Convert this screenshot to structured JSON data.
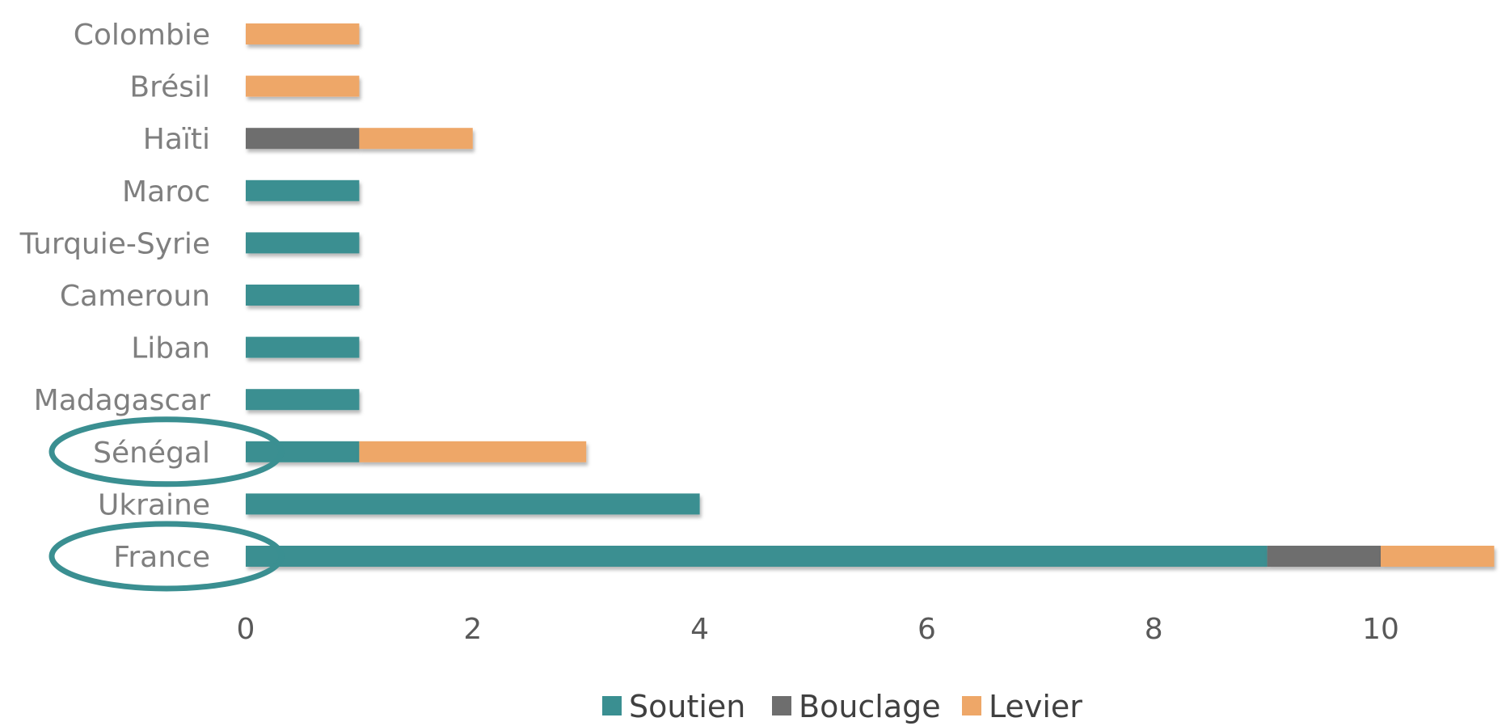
{
  "chart_data": {
    "type": "bar",
    "orientation": "horizontal",
    "stacked": true,
    "categories": [
      "Colombie",
      "Brésil",
      "Haïti",
      "Maroc",
      "Turquie-Syrie",
      "Cameroun",
      "Liban",
      "Madagascar",
      "Sénégal",
      "Ukraine",
      "France"
    ],
    "series": [
      {
        "name": "Soutien",
        "color": "#3a8f91",
        "values": [
          0,
          0,
          0,
          1,
          1,
          1,
          1,
          1,
          1,
          4,
          9
        ]
      },
      {
        "name": "Bouclage",
        "color": "#6e6e6e",
        "values": [
          0,
          0,
          1,
          0,
          0,
          0,
          0,
          0,
          0,
          0,
          1
        ]
      },
      {
        "name": "Levier",
        "color": "#eea768",
        "values": [
          1,
          1,
          1,
          0,
          0,
          0,
          0,
          0,
          2,
          0,
          1
        ]
      }
    ],
    "xticks": [
      "0",
      "2",
      "4",
      "6",
      "8",
      "10"
    ],
    "xlim": [
      0,
      11
    ],
    "legend_position": "bottom",
    "highlighted_categories": [
      "Sénégal",
      "France"
    ],
    "highlight_color": "#3a8f91",
    "grid": false
  }
}
